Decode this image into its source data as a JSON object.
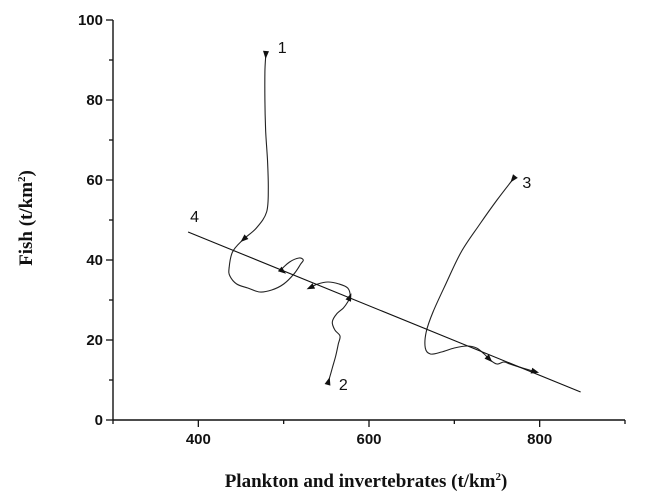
{
  "chart_data": {
    "type": "line",
    "title": "",
    "xlabel": "Plankton and invertebrates (t/km²)",
    "xlabel_text": "Plankton and invertebrates (t/km",
    "xlabel_sup": "2",
    "xlabel_end": ")",
    "ylabel": "Fish (t/km²)",
    "ylabel_text": "Fish (t/km",
    "ylabel_sup": "2",
    "ylabel_end": ")",
    "xlim": [
      300,
      900
    ],
    "ylim": [
      0,
      100
    ],
    "x_ticks": [
      400,
      600,
      800
    ],
    "x_minor_ticks": [
      300,
      500,
      700,
      900
    ],
    "y_ticks": [
      0,
      20,
      40,
      60,
      80,
      100
    ],
    "y_minor_ticks": [
      10,
      30,
      50,
      70,
      90
    ],
    "grid": false,
    "series": [
      {
        "name": "1",
        "x": [
          479,
          478,
          478,
          479,
          481,
          482,
          480,
          468,
          452,
          440,
          436,
          437,
          445,
          458,
          472,
          486,
          500,
          512,
          520,
          523,
          518,
          507,
          497,
          500
        ],
        "y": [
          91,
          87,
          80,
          72,
          65,
          58,
          52,
          48,
          45,
          42,
          38,
          36,
          34,
          33,
          32,
          32.5,
          34,
          36.5,
          39,
          40,
          40.5,
          39.5,
          37.5,
          37
        ],
        "arrows": [
          0,
          8,
          23
        ]
      },
      {
        "name": "2",
        "x": [
          553,
          557,
          561,
          564,
          566,
          560,
          557,
          562,
          570,
          575,
          578,
          575,
          565,
          552,
          540,
          530
        ],
        "y": [
          10,
          13,
          16,
          19,
          21,
          22.5,
          24.5,
          26.5,
          28,
          29.5,
          31,
          33,
          34,
          34.5,
          34,
          33
        ],
        "arrows": [
          0,
          10,
          15
        ]
      },
      {
        "name": "3",
        "x": [
          768,
          750,
          730,
          708,
          690,
          675,
          667,
          666,
          672,
          685,
          700,
          715,
          726,
          735,
          742,
          750,
          758,
          765,
          772,
          780,
          788,
          796
        ],
        "y": [
          60,
          55,
          49,
          42,
          34,
          27,
          22,
          18,
          16.5,
          17,
          18,
          18.5,
          18,
          16.5,
          15,
          14,
          14.5,
          14,
          13.5,
          13,
          12.5,
          12
        ],
        "arrows": [
          0,
          14,
          21
        ]
      },
      {
        "name": "4",
        "x": [
          388,
          848
        ],
        "y": [
          47,
          7
        ]
      }
    ],
    "labels": [
      "1",
      "2",
      "3",
      "4"
    ]
  }
}
